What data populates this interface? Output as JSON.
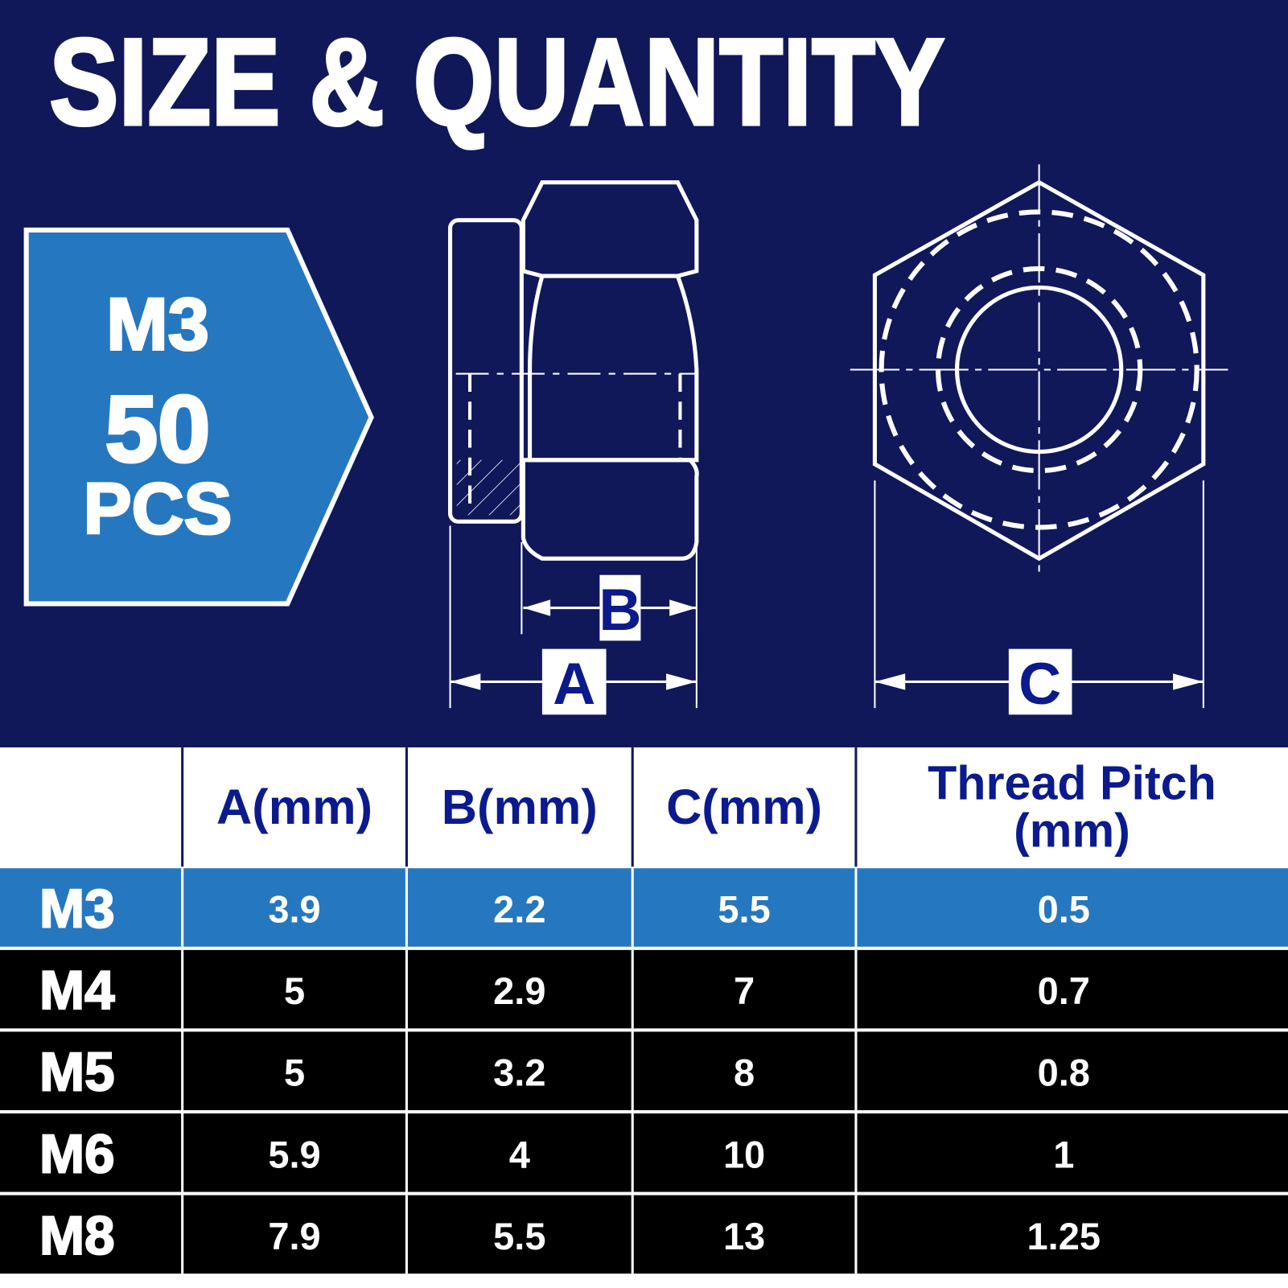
{
  "header": {
    "title": "SIZE & QUANTITY"
  },
  "badge": {
    "size": "M3",
    "quantity": "50",
    "unit": "PCS"
  },
  "diagram": {
    "labels": [
      "B",
      "A",
      "C"
    ]
  },
  "table": {
    "columns": [
      "A(mm)",
      "B(mm)",
      "C(mm)",
      "Thread Pitch (mm)"
    ],
    "rows": [
      [
        "M3",
        3.9,
        2.2,
        5.5,
        0.5
      ],
      [
        "M4",
        5,
        2.9,
        7,
        0.7
      ],
      [
        "M5",
        5,
        3.2,
        8,
        0.8
      ],
      [
        "M6",
        5.9,
        4,
        10,
        1
      ],
      [
        "M8",
        7.9,
        5.5,
        13,
        1.25
      ]
    ]
  }
}
